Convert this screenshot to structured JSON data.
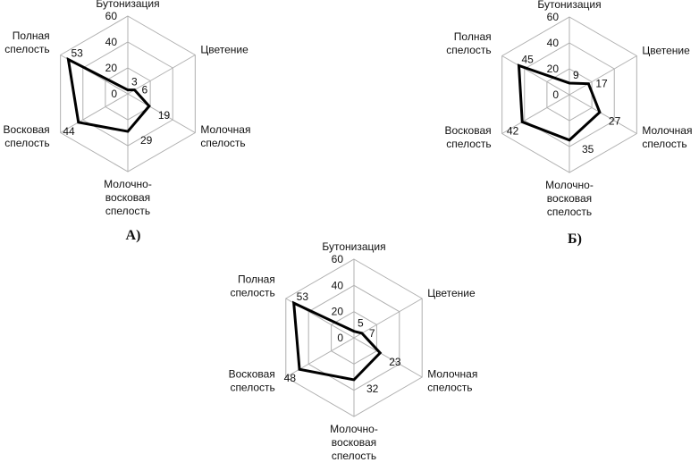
{
  "chart_data": [
    {
      "type": "radar",
      "caption": "А)",
      "categories": [
        "Бутонизация",
        "Цветение",
        "Молочная спелость",
        "Молочно-восковая спелость",
        "Восковая спелость",
        "Полная спелость"
      ],
      "values": [
        3,
        6,
        19,
        29,
        44,
        53
      ],
      "rlim": [
        0,
        60
      ],
      "ticks": [
        "0",
        "20",
        "40",
        "60"
      ],
      "grid": true
    },
    {
      "type": "radar",
      "caption": "Б)",
      "categories": [
        "Бутонизация",
        "Цветение",
        "Молочная спелость",
        "Молочно-восковая спелость",
        "Восковая спелость",
        "Полная спелость"
      ],
      "values": [
        9,
        17,
        27,
        35,
        42,
        45
      ],
      "rlim": [
        0,
        60
      ],
      "ticks": [
        "0",
        "20",
        "40",
        "60"
      ],
      "grid": true
    },
    {
      "type": "radar",
      "caption": "",
      "categories": [
        "Бутонизация",
        "Цветение",
        "Молочная спелость",
        "Молочно-восковая спелость",
        "Восковая спелость",
        "Полная спелость"
      ],
      "values": [
        5,
        7,
        23,
        32,
        48,
        53
      ],
      "rlim": [
        0,
        60
      ],
      "ticks": [
        "0",
        "20",
        "40",
        "60"
      ],
      "grid": true
    }
  ],
  "colors": {
    "series": "#000000",
    "grid": "#b0b0b0"
  }
}
